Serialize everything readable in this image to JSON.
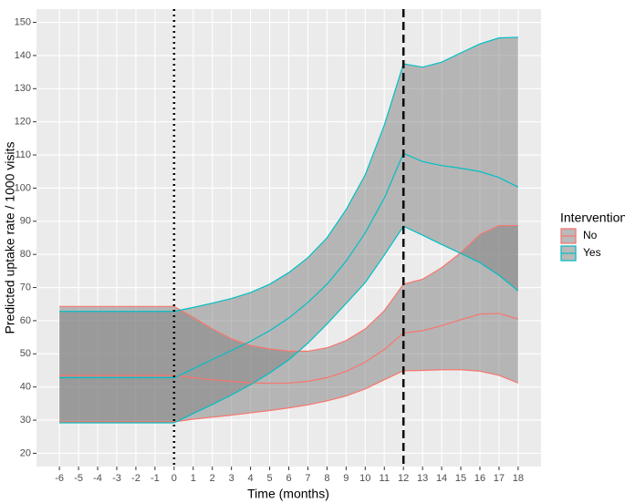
{
  "chart_data": {
    "type": "ribbon-line",
    "x_label": "Time (months)",
    "y_label": "Predicted uptake rate / 1000 visits",
    "legend_title": "Intervention",
    "legend_position": "right",
    "grid": true,
    "ribbon_color": "#7f7f7f",
    "x": [
      -6,
      -5,
      -4,
      -3,
      -2,
      -1,
      0,
      1,
      2,
      3,
      4,
      5,
      6,
      7,
      8,
      9,
      10,
      11,
      12,
      13,
      14,
      15,
      16,
      17,
      18
    ],
    "series": [
      {
        "name": "No",
        "color": "#F8766D",
        "values": [
          43.5,
          43.5,
          43.5,
          43.5,
          43.5,
          43.5,
          43.5,
          42.8,
          42.2,
          41.7,
          41.3,
          41.1,
          41.2,
          41.7,
          42.8,
          44.7,
          47.5,
          51.3,
          56.3,
          57,
          58.5,
          60.3,
          62,
          62.2,
          60.5
        ],
        "lower": [
          29.5,
          29.5,
          29.5,
          29.5,
          29.5,
          29.5,
          29.5,
          30.3,
          30.9,
          31.5,
          32.2,
          32.9,
          33.7,
          34.6,
          35.8,
          37.3,
          39.4,
          42.2,
          44.9,
          45,
          45.2,
          45.2,
          44.8,
          43.5,
          41.2
        ],
        "upper": [
          64.3,
          64.3,
          64.3,
          64.3,
          64.3,
          64.3,
          64.3,
          61,
          57.5,
          54.5,
          52.5,
          51.5,
          50.8,
          50.8,
          51.8,
          54,
          57.5,
          63,
          71,
          72.5,
          76,
          80.5,
          86,
          88.7,
          88.7
        ]
      },
      {
        "name": "Yes",
        "color": "#00BFC4",
        "values": [
          42.8,
          42.8,
          42.8,
          42.8,
          42.8,
          42.8,
          42.8,
          45.5,
          48.3,
          51,
          53.8,
          57,
          60.8,
          65.5,
          71,
          78,
          86.5,
          97,
          110.5,
          108,
          106.8,
          106,
          105,
          103.2,
          100.3
        ],
        "lower": [
          29.2,
          29.2,
          29.2,
          29.2,
          29.2,
          29.2,
          29.2,
          32,
          34.7,
          37.6,
          40.7,
          44.2,
          48.2,
          53.2,
          59,
          65.2,
          71.5,
          79.8,
          88.5,
          85.8,
          83,
          80.3,
          77.5,
          73.7,
          69
        ],
        "upper": [
          62.8,
          62.8,
          62.8,
          62.8,
          62.8,
          62.8,
          62.8,
          64,
          65.3,
          66.7,
          68.5,
          71,
          74.5,
          79,
          85,
          93.5,
          104,
          119,
          137.5,
          136.5,
          138,
          140.8,
          143.5,
          145.3,
          145.5
        ]
      }
    ],
    "vlines": [
      {
        "x": 0,
        "style": "dotted"
      },
      {
        "x": 12,
        "style": "dashed"
      }
    ],
    "xlim": [
      -7.2,
      19.2
    ],
    "xticks": [
      -6,
      -5,
      -4,
      -3,
      -2,
      -1,
      0,
      1,
      2,
      3,
      4,
      5,
      6,
      7,
      8,
      9,
      10,
      11,
      12,
      13,
      14,
      15,
      16,
      17,
      18
    ],
    "ylim": [
      16,
      154
    ],
    "yticks": [
      20,
      30,
      40,
      50,
      60,
      70,
      80,
      90,
      100,
      110,
      120,
      130,
      140,
      150
    ]
  }
}
